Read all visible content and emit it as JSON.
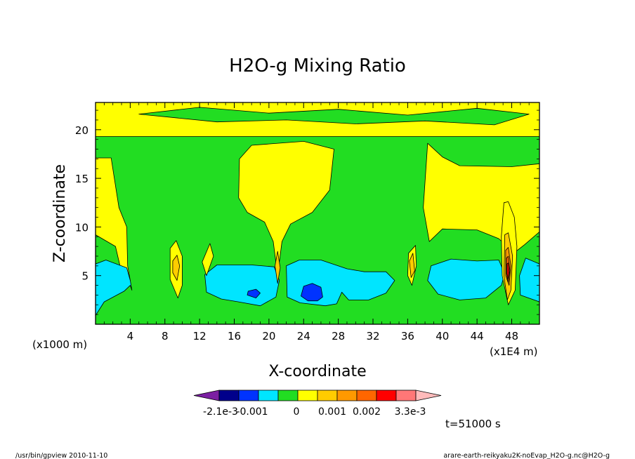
{
  "chart_data": {
    "type": "heatmap",
    "title": "H2O-g Mixing Ratio",
    "xlabel": "X-coordinate",
    "ylabel": "Z-coordinate",
    "x_unit_left": "(x1000 m)",
    "x_unit_right": "(x1E4 m)",
    "x_ticks": [
      4,
      8,
      12,
      16,
      20,
      24,
      28,
      32,
      36,
      40,
      44,
      48
    ],
    "y_ticks": [
      5,
      10,
      15,
      20
    ],
    "xlim": [
      0,
      51.2
    ],
    "ylim": [
      0,
      22.8
    ],
    "grid": false,
    "colorbar": {
      "labels": [
        "-2.1e-3",
        "-0.001",
        "0",
        "0.001",
        "0.002",
        "3.3e-3"
      ],
      "colors": [
        "#7b1fa2",
        "#00008b",
        "#0033ff",
        "#00e5ff",
        "#22dd22",
        "#ffff00",
        "#ffcc00",
        "#ff9900",
        "#ff6600",
        "#ff0000",
        "#ff7777",
        "#ffbbbb"
      ]
    },
    "time_label": "t=51000 s",
    "regions": [
      {
        "level": "green",
        "polygon": [
          [
            0,
            0
          ],
          [
            51.2,
            0
          ],
          [
            51.2,
            19.3
          ],
          [
            0,
            19.3
          ]
        ]
      },
      {
        "level": "yellow",
        "polygon": [
          [
            0,
            19.3
          ],
          [
            51.2,
            19.3
          ],
          [
            51.2,
            22.8
          ],
          [
            0,
            22.8
          ]
        ]
      },
      {
        "level": "green",
        "polygon": [
          [
            5,
            21.6
          ],
          [
            12,
            22.3
          ],
          [
            20,
            21.7
          ],
          [
            28,
            22.1
          ],
          [
            36,
            21.5
          ],
          [
            44,
            22.2
          ],
          [
            50,
            21.6
          ],
          [
            46,
            20.5
          ],
          [
            38,
            20.9
          ],
          [
            30,
            20.6
          ],
          [
            22,
            21.0
          ],
          [
            14,
            20.8
          ]
        ]
      },
      {
        "level": "yellow",
        "polygon": [
          [
            0,
            17.1
          ],
          [
            1.8,
            17.1
          ],
          [
            2.7,
            12
          ],
          [
            3.6,
            10
          ],
          [
            3.7,
            6
          ],
          [
            4,
            4.5
          ],
          [
            3.3,
            4.2
          ],
          [
            2.3,
            8
          ],
          [
            0,
            9.2
          ]
        ]
      },
      {
        "level": "yellow",
        "polygon": [
          [
            16.6,
            17
          ],
          [
            18,
            18.4
          ],
          [
            24,
            18.8
          ],
          [
            27.5,
            18
          ],
          [
            27,
            13.8
          ],
          [
            25,
            11.5
          ],
          [
            22.5,
            10.3
          ],
          [
            21.5,
            8.5
          ],
          [
            21,
            5
          ],
          [
            20.5,
            8.5
          ],
          [
            19.5,
            10.5
          ],
          [
            17.5,
            11.5
          ],
          [
            16.5,
            13
          ]
        ]
      },
      {
        "level": "yellow",
        "polygon": [
          [
            38.3,
            18.6
          ],
          [
            40,
            17.2
          ],
          [
            42,
            16.3
          ],
          [
            48,
            16.2
          ],
          [
            51.2,
            16.5
          ],
          [
            51.2,
            9.5
          ],
          [
            49.5,
            8.2
          ],
          [
            48.5,
            7.5
          ],
          [
            48,
            6
          ],
          [
            47.5,
            8
          ],
          [
            46.5,
            8.8
          ],
          [
            44,
            9.7
          ],
          [
            40,
            9.8
          ],
          [
            38.5,
            8.5
          ],
          [
            37.8,
            12
          ]
        ]
      },
      {
        "level": "cyan",
        "polygon": [
          [
            0,
            0.9
          ],
          [
            1,
            2.3
          ],
          [
            3.3,
            3.4
          ],
          [
            4,
            4
          ],
          [
            4.2,
            3.5
          ],
          [
            4,
            4.5
          ],
          [
            3.6,
            5.8
          ],
          [
            1.2,
            6.6
          ],
          [
            0,
            6.2
          ]
        ]
      },
      {
        "level": "cyan",
        "polygon": [
          [
            12.8,
            3.3
          ],
          [
            14.5,
            2.6
          ],
          [
            16.5,
            2.3
          ],
          [
            19,
            1.9
          ],
          [
            20.8,
            2.8
          ],
          [
            21.2,
            4.5
          ],
          [
            20.6,
            5.9
          ],
          [
            18,
            6.1
          ],
          [
            14,
            6.1
          ],
          [
            12.6,
            5.1
          ]
        ]
      },
      {
        "level": "cyan",
        "polygon": [
          [
            22.1,
            2.8
          ],
          [
            23.6,
            2.2
          ],
          [
            26.5,
            1.9
          ],
          [
            27.8,
            2.1
          ],
          [
            28.4,
            3.3
          ],
          [
            29.2,
            2.5
          ],
          [
            31.5,
            2.5
          ],
          [
            33.5,
            3.2
          ],
          [
            34.5,
            4.5
          ],
          [
            33.5,
            5.4
          ],
          [
            31,
            5.4
          ],
          [
            29,
            5.7
          ],
          [
            26,
            6.6
          ],
          [
            23.5,
            6.6
          ],
          [
            22,
            6
          ]
        ]
      },
      {
        "level": "cyan",
        "polygon": [
          [
            38.3,
            4.5
          ],
          [
            39.5,
            3.1
          ],
          [
            42,
            2.5
          ],
          [
            45,
            2.7
          ],
          [
            46.8,
            4
          ],
          [
            47.2,
            5.2
          ],
          [
            46.5,
            6.6
          ],
          [
            44,
            6.5
          ],
          [
            41,
            6.7
          ],
          [
            38.7,
            6
          ]
        ]
      },
      {
        "level": "cyan",
        "polygon": [
          [
            49,
            3
          ],
          [
            51.2,
            2.3
          ],
          [
            51.2,
            6.2
          ],
          [
            49.6,
            6.8
          ],
          [
            48.9,
            5
          ]
        ]
      },
      {
        "level": "blue",
        "polygon": [
          [
            23.7,
            2.9
          ],
          [
            24.5,
            2.4
          ],
          [
            25.6,
            2.4
          ],
          [
            26.2,
            2.8
          ],
          [
            26,
            3.8
          ],
          [
            25,
            4.2
          ],
          [
            24,
            3.9
          ]
        ]
      },
      {
        "level": "blue",
        "polygon": [
          [
            17.5,
            3
          ],
          [
            18.5,
            2.7
          ],
          [
            19,
            3.2
          ],
          [
            18.5,
            3.6
          ],
          [
            17.6,
            3.4
          ]
        ]
      },
      {
        "level": "yellow",
        "polygon": [
          [
            8.6,
            7.8
          ],
          [
            9.3,
            8.6
          ],
          [
            10,
            7
          ],
          [
            10,
            4
          ],
          [
            9.5,
            2.7
          ],
          [
            8.6,
            4.6
          ]
        ]
      },
      {
        "level": "yellow",
        "polygon": [
          [
            12.3,
            6.4
          ],
          [
            13.2,
            8.3
          ],
          [
            13.6,
            7
          ],
          [
            12.8,
            5
          ]
        ]
      },
      {
        "level": "yellow",
        "polygon": [
          [
            36.1,
            7.3
          ],
          [
            36.9,
            8.1
          ],
          [
            37,
            6
          ],
          [
            36.5,
            4
          ],
          [
            36,
            5
          ]
        ]
      },
      {
        "level": "yellow",
        "polygon": [
          [
            47.1,
            12.5
          ],
          [
            47.6,
            12.6
          ],
          [
            48.3,
            11
          ],
          [
            48.6,
            8
          ],
          [
            48.4,
            3.5
          ],
          [
            47.6,
            2
          ],
          [
            46.9,
            5
          ],
          [
            46.8,
            9
          ]
        ]
      },
      {
        "level": "yellow2",
        "polygon": [
          [
            8.9,
            6.5
          ],
          [
            9.4,
            7.1
          ],
          [
            9.7,
            6
          ],
          [
            9.4,
            4.5
          ],
          [
            8.9,
            5.3
          ]
        ]
      },
      {
        "level": "yellow2",
        "polygon": [
          [
            36.2,
            6.5
          ],
          [
            36.6,
            7.3
          ],
          [
            36.8,
            5.5
          ],
          [
            36.4,
            4.8
          ]
        ]
      },
      {
        "level": "yellow2",
        "polygon": [
          [
            20.7,
            6
          ],
          [
            21,
            7.5
          ],
          [
            21.3,
            5.8
          ],
          [
            21,
            4.2
          ]
        ]
      },
      {
        "level": "yellow2",
        "polygon": [
          [
            47.2,
            9.2
          ],
          [
            47.6,
            9.4
          ],
          [
            48.1,
            7
          ],
          [
            47.9,
            3.5
          ],
          [
            47.5,
            2.5
          ],
          [
            47.1,
            5
          ]
        ]
      },
      {
        "level": "orange",
        "polygon": [
          [
            47.3,
            7.6
          ],
          [
            47.6,
            7.9
          ],
          [
            47.9,
            6
          ],
          [
            47.7,
            4
          ],
          [
            47.3,
            5
          ]
        ]
      },
      {
        "level": "dorange",
        "polygon": [
          [
            47.4,
            6.8
          ],
          [
            47.6,
            7
          ],
          [
            47.8,
            5.5
          ],
          [
            47.6,
            4.3
          ],
          [
            47.4,
            5.2
          ]
        ]
      },
      {
        "level": "red",
        "polygon": [
          [
            47.45,
            6.2
          ],
          [
            47.6,
            6.3
          ],
          [
            47.7,
            5.4
          ],
          [
            47.55,
            4.6
          ],
          [
            47.45,
            5.2
          ]
        ]
      }
    ]
  },
  "footer": {
    "left": "/usr/bin/gpview   2010-11-10",
    "right": "arare-earth-reikyaku2K-noEvap_H2O-g.nc@H2O-g"
  }
}
